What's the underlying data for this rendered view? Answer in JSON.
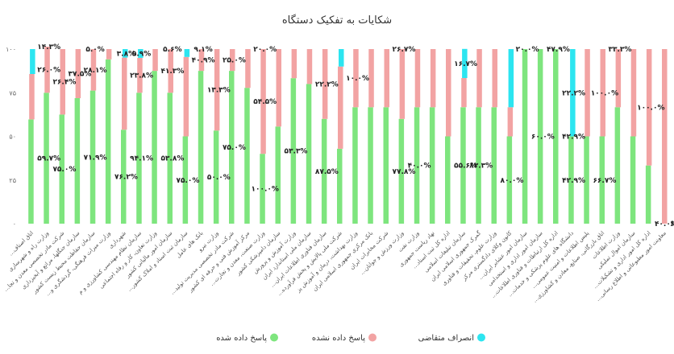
{
  "colors": {
    "answered": "#7EE57E",
    "unanswered": "#F2A3A3",
    "withdrawn": "#2CE5F0"
  },
  "chart_data": {
    "type": "bar",
    "stacked": true,
    "title": "شکایات به تفکیک دستگاه",
    "ylim": [
      0,
      100
    ],
    "yticks": [
      "۰",
      "۲۵",
      "۵۰",
      "۷۵",
      "۱۰۰"
    ],
    "grid": false,
    "legend_position": "bottom",
    "categories": [
      "...اتاق اصناف",
      "وزارت راه و شهرسازی",
      "...شرکت مادر تخصصی معدن و تجا",
      "سازمان جنگلها، مراتع و آبخیزداری",
      "سازمان حفاظت محیط زیست کشور",
      "...وزارت میراث فرهنگی، گردشگری و",
      "شهرداری",
      "سازمان نظام مهندسی کشاورزی و م",
      "وزارت تعاون، کار و رفاه اجتماعی",
      "سازمان امور مالیاتی کشور",
      "...سازمان ثبت اسناد و املاک کشور",
      "بانک های عامل",
      "وزارت نیرو",
      "...شرکت مادر تخصصی مدیریت تولید",
      "مرکز آموزش فنی و حرفه ای کشور",
      "...وزارت صنعت، معدن و تجارت",
      "سازمان دامپزشکی کشور",
      "وزارت آموزش و پرورش",
      "سازمان ملی استاندارد ایران",
      "...سازمان فناوری اطلاعات ایران",
      "...شرکت ملی پالایش و پخش فرآورده",
      "وزارت بهداشت، درمان و آموزش پز",
      "بانک مرکزی جمهوری اسلامی ایران",
      "شرکت مخابرات ایران",
      "...وزارت ورزش و جوانان",
      "وزارت نفت",
      "نهاد ریاست جمهوری",
      "...اداره کل ثبت اسناد",
      "سازمان تبلیغات اسلامی",
      "گمرک جمهوری اسلامی ایران",
      "وزارت علوم، تحقیقات و فناوری",
      "کانون وکلای دادگستری مرکز",
      "...سازمان امور عشایر ایران",
      "سازمان امور اداری و استخدامی",
      "...اداره کل ارتباطات و فناوری اطلاعات",
      "...دانشگاه های علوم پزشکی و خدمات",
      "...پلیس اطلاعات و امنیت عمومی",
      "...اتاق بازرگانی، صنایع، معادن و کشاورزی",
      "وزارت اطلاعات",
      "سازمان اموال تملیکی",
      "...اداره کل امور اداری و تشکیلات",
      "...معاونت امور مطبوعاتی و اطلاع رسانی"
    ],
    "series": [
      {
        "name": "پاسخ داده شده",
        "values": [
          59.7,
          75.0,
          62.5,
          71.9,
          76.2,
          94.1,
          53.8,
          75.0,
          87.5,
          75.0,
          50.0,
          87.5,
          53.3,
          87.5,
          77.8,
          40.0,
          55.6,
          83.3,
          80.0,
          60.0,
          42.9,
          66.7,
          66.7,
          66.7,
          60.0,
          66.7,
          66.7,
          50.0,
          66.7,
          66.7,
          66.7,
          50.0,
          100.0,
          100.0,
          100.0,
          50.0,
          50.0,
          50.0,
          66.7,
          50.0,
          33.3,
          0.0
        ]
      },
      {
        "name": "پاسخ داده نشده",
        "values": [
          26.0,
          26.4,
          37.5,
          28.1,
          23.8,
          5.9,
          41.3,
          20.0,
          12.5,
          25.0,
          45.5,
          12.5,
          46.7,
          12.5,
          22.2,
          60.0,
          44.4,
          16.7,
          20.0,
          40.0,
          47.1,
          33.3,
          33.3,
          33.3,
          40.0,
          33.3,
          33.3,
          50.0,
          16.7,
          33.3,
          33.3,
          16.7,
          0.0,
          0.0,
          0.0,
          0.0,
          50.0,
          50.0,
          33.3,
          50.0,
          66.7,
          100.0
        ]
      },
      {
        "name": "انصراف متقاضی",
        "values": [
          14.3,
          0.0,
          0.0,
          0.0,
          0.0,
          0.0,
          4.9,
          5.0,
          0.0,
          0.0,
          4.5,
          0.0,
          0.0,
          0.0,
          0.0,
          0.0,
          0.0,
          0.0,
          0.0,
          0.0,
          10.0,
          0.0,
          0.0,
          0.0,
          0.0,
          0.0,
          0.0,
          0.0,
          16.7,
          0.0,
          0.0,
          33.3,
          0.0,
          0.0,
          0.0,
          50.0,
          0.0,
          0.0,
          0.0,
          0.0,
          0.0,
          0.0
        ]
      }
    ],
    "data_labels": [
      {
        "series": 0,
        "i": 1,
        "text": "۵۹.۷%"
      },
      {
        "series": 1,
        "i": 1,
        "text": "۲۶.۰%"
      },
      {
        "series": 1,
        "i": 2,
        "text": "۲۶.۴%"
      },
      {
        "series": 2,
        "i": 1,
        "text": "۱۴.۳%"
      },
      {
        "series": 0,
        "i": 2,
        "text": "۷۵.۰%"
      },
      {
        "series": 1,
        "i": 3,
        "text": "۳۷.۵%"
      },
      {
        "series": 2,
        "i": 4,
        "text": "۵.۰%"
      },
      {
        "series": 0,
        "i": 4,
        "text": "۷۱.۹%"
      },
      {
        "series": 1,
        "i": 4,
        "text": "۲۸.۱%"
      },
      {
        "series": 0,
        "i": 6,
        "text": "۷۶.۲%"
      },
      {
        "series": 0,
        "i": 7,
        "text": "۹۴.۱%"
      },
      {
        "series": 1,
        "i": 7,
        "text": "۲۳.۸%"
      },
      {
        "series": 2,
        "i": 6,
        "text": "۳.۸%"
      },
      {
        "series": 2,
        "i": 7,
        "text": "۵.۹%"
      },
      {
        "series": 0,
        "i": 9,
        "text": "۵۳.۸%"
      },
      {
        "series": 1,
        "i": 9,
        "text": "۴۱.۳%"
      },
      {
        "series": 2,
        "i": 9,
        "text": "۵.۶%"
      },
      {
        "series": 0,
        "i": 10,
        "text": "۷۵.۰%"
      },
      {
        "series": 0,
        "i": 12,
        "text": "۵۰.۰%"
      },
      {
        "series": 1,
        "i": 11,
        "text": "۴۰.۹%"
      },
      {
        "series": 1,
        "i": 12,
        "text": "۱۳.۳%"
      },
      {
        "series": 2,
        "i": 11,
        "text": "۹.۱%"
      },
      {
        "series": 1,
        "i": 13,
        "text": "۲۵.۰%"
      },
      {
        "series": 0,
        "i": 13,
        "text": "۷۵.۰%"
      },
      {
        "series": 0,
        "i": 15,
        "text": "۱۰۰.۰%"
      },
      {
        "series": 1,
        "i": 15,
        "text": "۵۴.۵%"
      },
      {
        "series": 2,
        "i": 15,
        "text": "۲۰.۰%"
      },
      {
        "series": 0,
        "i": 17,
        "text": "۵۳.۳%"
      },
      {
        "series": 0,
        "i": 19,
        "text": "۸۷.۵%"
      },
      {
        "series": 1,
        "i": 19,
        "text": "۲۲.۲%"
      },
      {
        "series": 1,
        "i": 21,
        "text": "۱۰.۰%"
      },
      {
        "series": 0,
        "i": 24,
        "text": "۷۷.۸%"
      },
      {
        "series": 2,
        "i": 24,
        "text": "۲۶.۷%"
      },
      {
        "series": 0,
        "i": 25,
        "text": "۴۰.۰%"
      },
      {
        "series": 0,
        "i": 28,
        "text": "۵۵.۶%"
      },
      {
        "series": 0,
        "i": 29,
        "text": "۸۳.۳%"
      },
      {
        "series": 2,
        "i": 28,
        "text": "۱۶.۷%"
      },
      {
        "series": 0,
        "i": 31,
        "text": "۸۰.۰%"
      },
      {
        "series": 2,
        "i": 32,
        "text": "۲۰.۰%"
      },
      {
        "series": 0,
        "i": 33,
        "text": "۶۰.۰%"
      },
      {
        "series": 1,
        "i": 34,
        "text": "۴۷.۹%"
      },
      {
        "series": 0,
        "i": 35,
        "text": "۴۲.۹%"
      },
      {
        "series": 1,
        "i": 35,
        "text": "۴۲.۹%"
      },
      {
        "series": 2,
        "i": 35,
        "text": "۲۲.۲%"
      },
      {
        "series": 0,
        "i": 37,
        "text": "۶۶.۷%"
      },
      {
        "series": 1,
        "i": 37,
        "text": "۱۰۰.۰%"
      },
      {
        "series": 2,
        "i": 38,
        "text": "۳۳.۳%"
      },
      {
        "series": 1,
        "i": 40,
        "text": "۱۰۰.۰%"
      },
      {
        "series": 0,
        "i": 41,
        "text": "۴۰.۰%"
      },
      {
        "series": 1,
        "i": 42,
        "text": "۶۰.۰%"
      }
    ]
  },
  "legend": [
    {
      "label": "پاسخ داده شده",
      "color_key": "answered"
    },
    {
      "label": "پاسخ داده نشده",
      "color_key": "unanswered"
    },
    {
      "label": "انصراف متقاضی",
      "color_key": "withdrawn"
    }
  ]
}
